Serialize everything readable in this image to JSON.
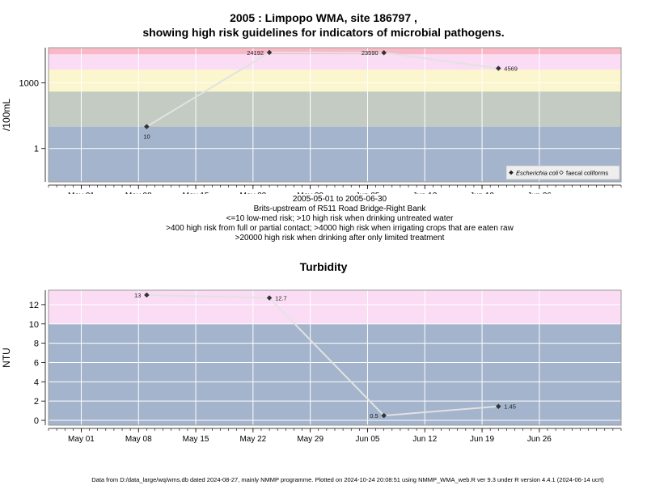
{
  "title_line1": "2005 : Limpopo WMA, site 186797 ,",
  "title_line2": "showing high risk guidelines for indicators of microbial pathogens.",
  "notes": [
    "2005-05-01 to 2005-06-30",
    "Brits-upstream of R511 Road Bridge-Right Bank",
    "<=10 low-med risk; >10 high risk when drinking untreated water",
    ">400 high risk from full or partial contact; >4000 high risk when irrigating crops that are eaten raw",
    ">20000 high risk when drinking after only limited treatment"
  ],
  "footer": "Data from D:/data_large/wq/wms.db dated 2024-08-27, mainly NMMP programme. Plotted on 2024-10-24 20:08:51 using NMMP_WMA_web.R ver 9.3 under R version 4.4.1 (2024-06-14 ucrt)",
  "colors": {
    "low_band": "#a3b4cc",
    "low_med_band": "#c3cbc3",
    "contact_band": "#fbf6cd",
    "irrigation_band": "#fbdcf5",
    "limited_treatment_band": "#f9b8c6",
    "grid": "#ffffff",
    "line": "#e2e2e2",
    "point": "#333333"
  },
  "chart_data": [
    {
      "type": "line",
      "ylabel": "/100mL",
      "y_scale": "log10",
      "ylim": [
        0.03,
        40000
      ],
      "xlim": [
        "2005-04-27",
        "2005-07-06"
      ],
      "x_tick_labels": [
        "May 01",
        "May 08",
        "May 15",
        "May 22",
        "May 29",
        "Jun 05",
        "Jun 12",
        "Jun 19",
        "Jun 26"
      ],
      "x_tick_dates": [
        "2005-05-01",
        "2005-05-08",
        "2005-05-15",
        "2005-05-22",
        "2005-05-29",
        "2005-06-05",
        "2005-06-12",
        "2005-06-19",
        "2005-06-26"
      ],
      "y_tick_labels": [
        "1",
        "1000"
      ],
      "y_tick_values": [
        1,
        1000
      ],
      "grid": true,
      "legend_position": "bottom-right",
      "bands": [
        {
          "from": 0.03,
          "to": 10,
          "color": "#a3b4cc"
        },
        {
          "from": 10,
          "to": 400,
          "color": "#c3cbc3"
        },
        {
          "from": 400,
          "to": 4000,
          "color": "#fbf6cd"
        },
        {
          "from": 4000,
          "to": 20000,
          "color": "#fbdcf5"
        },
        {
          "from": 20000,
          "to": 40000,
          "color": "#f9b8c6"
        }
      ],
      "series": [
        {
          "name": "Escherichia coli",
          "marker": "filled-diamond",
          "x": [
            "2005-05-09",
            "2005-05-24",
            "2005-06-07",
            "2005-06-21"
          ],
          "y": [
            10,
            24192,
            23590,
            4569
          ],
          "labels": [
            "10",
            "24192",
            "23590",
            "4569"
          ]
        }
      ],
      "legend": [
        {
          "name": "Escherichia coli",
          "marker": "filled-diamond",
          "italic": true
        },
        {
          "name": "faecal coliforms",
          "marker": "open-diamond",
          "italic": false
        }
      ]
    },
    {
      "type": "line",
      "title": "Turbidity",
      "ylabel": "NTU",
      "ylim": [
        -0.5,
        13.5
      ],
      "xlim": [
        "2005-04-27",
        "2005-07-06"
      ],
      "x_tick_labels": [
        "May 01",
        "May 08",
        "May 15",
        "May 22",
        "May 29",
        "Jun 05",
        "Jun 12",
        "Jun 19",
        "Jun 26"
      ],
      "x_tick_dates": [
        "2005-05-01",
        "2005-05-08",
        "2005-05-15",
        "2005-05-22",
        "2005-05-29",
        "2005-06-05",
        "2005-06-12",
        "2005-06-19",
        "2005-06-26"
      ],
      "y_tick_labels": [
        "0",
        "2",
        "4",
        "6",
        "8",
        "10",
        "12"
      ],
      "y_tick_values": [
        0,
        2,
        4,
        6,
        8,
        10,
        12
      ],
      "grid": true,
      "bands": [
        {
          "from": -0.5,
          "to": 10,
          "color": "#a3b4cc"
        },
        {
          "from": 10,
          "to": 13.5,
          "color": "#fbdcf5"
        }
      ],
      "series": [
        {
          "name": "",
          "marker": "filled-diamond",
          "x": [
            "2005-05-09",
            "2005-05-24",
            "2005-06-07",
            "2005-06-21"
          ],
          "y": [
            13,
            12.7,
            0.5,
            1.45
          ],
          "labels": [
            "13",
            "12.7",
            "0.5",
            "1.45"
          ]
        }
      ]
    }
  ]
}
